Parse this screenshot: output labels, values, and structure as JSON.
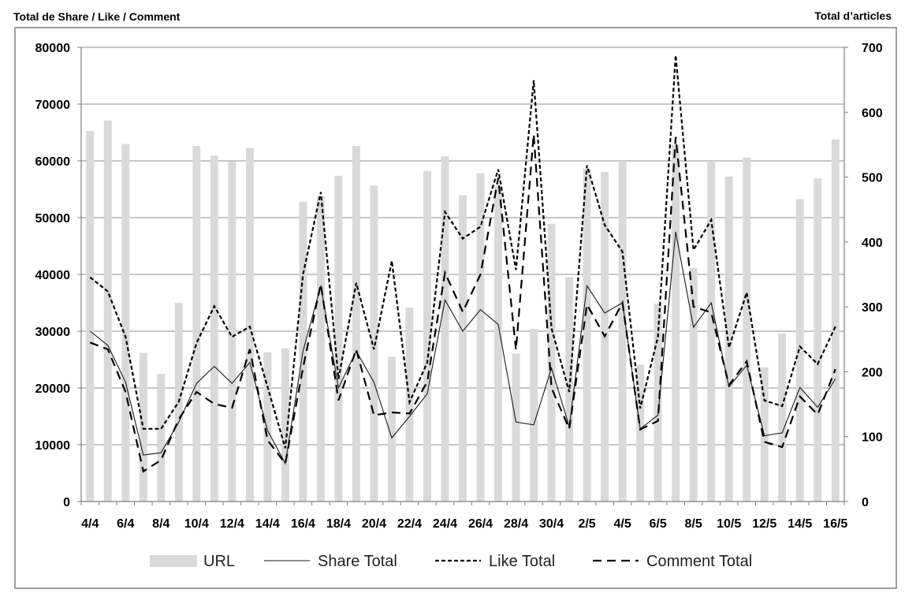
{
  "chart_data": {
    "type": "bar+line",
    "y_left_label": "Total de Share / Like / Comment",
    "y_right_label": "Total d’articles",
    "y_left_lim": [
      0,
      80000
    ],
    "y_left_ticks": [
      "0",
      "10000",
      "20000",
      "30000",
      "40000",
      "50000",
      "60000",
      "70000",
      "80000"
    ],
    "y_right_lim": [
      0,
      700
    ],
    "y_right_ticks": [
      "0",
      "100",
      "200",
      "300",
      "400",
      "500",
      "600",
      "700"
    ],
    "grid": "horizontal",
    "legend_position": "bottom",
    "x": [
      "4/4",
      "5/4",
      "6/4",
      "7/4",
      "8/4",
      "9/4",
      "10/4",
      "11/4",
      "12/4",
      "13/4",
      "14/4",
      "15/4",
      "16/4",
      "17/4",
      "18/4",
      "19/4",
      "20/4",
      "21/4",
      "22/4",
      "23/4",
      "24/4",
      "25/4",
      "26/4",
      "27/4",
      "28/4",
      "29/4",
      "30/4",
      "1/5",
      "2/5",
      "3/5",
      "4/5",
      "5/5",
      "6/5",
      "7/5",
      "8/5",
      "9/5",
      "10/5",
      "11/5",
      "12/5",
      "13/5",
      "14/5",
      "15/5",
      "16/5"
    ],
    "x_tick_labels": [
      "4/4",
      "6/4",
      "8/4",
      "10/4",
      "12/4",
      "14/4",
      "16/4",
      "18/4",
      "20/4",
      "22/4",
      "24/4",
      "26/4",
      "28/4",
      "30/4",
      "2/5",
      "4/5",
      "6/5",
      "8/5",
      "10/5",
      "12/5",
      "14/5",
      "16/5"
    ],
    "series": [
      {
        "name": "URL",
        "axis": "right",
        "kind": "bar",
        "values": [
          571,
          587,
          551,
          229,
          197,
          306,
          548,
          533,
          524,
          545,
          230,
          236,
          462,
          471,
          502,
          548,
          487,
          223,
          299,
          509,
          532,
          472,
          506,
          486,
          228,
          266,
          428,
          346,
          513,
          508,
          525,
          211,
          305,
          550,
          360,
          525,
          501,
          530,
          207,
          259,
          466,
          498,
          558
        ]
      },
      {
        "name": "Share Total",
        "axis": "left",
        "kind": "solid",
        "values": [
          30000,
          27500,
          21000,
          8200,
          8600,
          14000,
          20800,
          23800,
          20800,
          24500,
          12500,
          6700,
          26500,
          38000,
          20000,
          26500,
          21000,
          11200,
          15000,
          19000,
          35500,
          30000,
          33800,
          31200,
          14000,
          13500,
          23500,
          13200,
          38000,
          33200,
          35000,
          12800,
          15200,
          47500,
          30700,
          35000,
          20200,
          24000,
          11600,
          12100,
          20100,
          16600,
          21600
        ]
      },
      {
        "name": "Like Total",
        "axis": "left",
        "kind": "dotted",
        "values": [
          39500,
          37000,
          29000,
          12800,
          12800,
          17600,
          27900,
          34400,
          29000,
          30800,
          20200,
          9400,
          40000,
          54500,
          21600,
          38500,
          26800,
          42400,
          17500,
          24500,
          51000,
          46300,
          48400,
          58500,
          40800,
          74200,
          30500,
          19300,
          59200,
          48700,
          44000,
          16400,
          29000,
          78600,
          44300,
          49600,
          27100,
          36800,
          17800,
          16800,
          27300,
          24200,
          30800
        ]
      },
      {
        "name": "Comment Total",
        "axis": "left",
        "kind": "dashed",
        "values": [
          28000,
          26800,
          19300,
          5300,
          7300,
          14500,
          19300,
          17200,
          16500,
          26800,
          10800,
          6700,
          23600,
          38300,
          17800,
          26800,
          15200,
          15700,
          15500,
          21100,
          40300,
          33400,
          40000,
          57000,
          26700,
          64700,
          20000,
          12800,
          34700,
          29100,
          35000,
          12700,
          14200,
          64200,
          34300,
          33300,
          20500,
          24700,
          10500,
          9600,
          18500,
          15300,
          23300
        ]
      }
    ]
  }
}
